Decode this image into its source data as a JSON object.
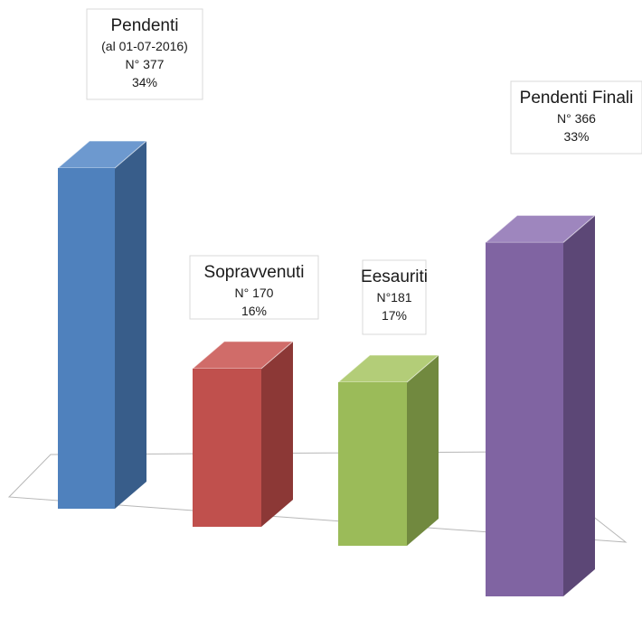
{
  "chart_data": {
    "type": "bar",
    "categories": [
      "Pendenti",
      "Sopravvenuti",
      "Eesauriti",
      "Pendenti Finali"
    ],
    "values": [
      377,
      170,
      181,
      366
    ],
    "percentages": [
      "34%",
      "16%",
      "17%",
      "33%"
    ],
    "colors": {
      "front": [
        "#4f81bd",
        "#c0504d",
        "#9bbb59",
        "#8064a2"
      ],
      "side": [
        "#385d8a",
        "#8c3836",
        "#71893f",
        "#5c4776"
      ],
      "top": [
        "#6d99cf",
        "#d06c69",
        "#b3cd78",
        "#9e86be"
      ]
    },
    "data_labels": [
      {
        "name": "Pendenti",
        "note": "(al 01-07-2016)",
        "count": "N° 377",
        "pct": "34%"
      },
      {
        "name": "Sopravvenuti",
        "note": "",
        "count": "N° 170",
        "pct": "16%"
      },
      {
        "name": "Eesauriti",
        "note": "",
        "count": "N°181",
        "pct": "17%"
      },
      {
        "name": "Pendenti Finali",
        "note": "",
        "count": "N° 366",
        "pct": "33%"
      }
    ],
    "title": "",
    "xlabel": "",
    "ylabel": "",
    "legend": "none",
    "grid": false,
    "style": "3d-column"
  }
}
